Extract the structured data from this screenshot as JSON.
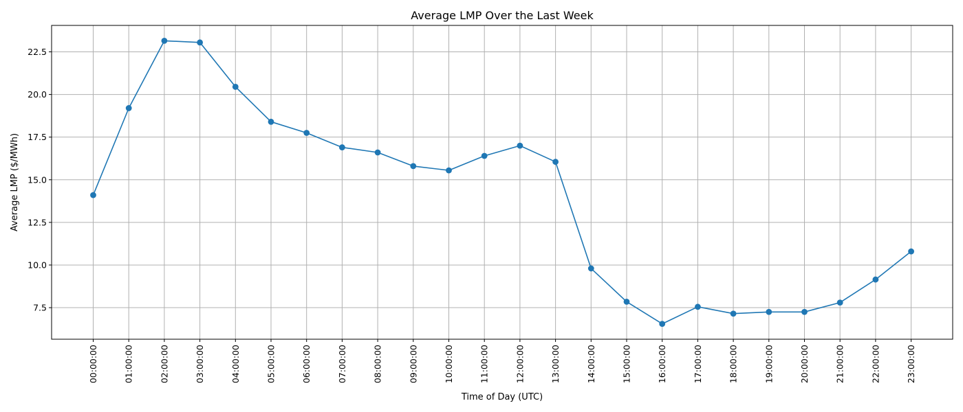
{
  "chart_data": {
    "type": "line",
    "title": "Average LMP Over the Last Week",
    "xlabel": "Time of Day (UTC)",
    "ylabel": "Average LMP ($/MWh)",
    "categories": [
      "00:00:00",
      "01:00:00",
      "02:00:00",
      "03:00:00",
      "04:00:00",
      "05:00:00",
      "06:00:00",
      "07:00:00",
      "08:00:00",
      "09:00:00",
      "10:00:00",
      "11:00:00",
      "12:00:00",
      "13:00:00",
      "14:00:00",
      "15:00:00",
      "16:00:00",
      "17:00:00",
      "18:00:00",
      "19:00:00",
      "20:00:00",
      "21:00:00",
      "22:00:00",
      "23:00:00"
    ],
    "series": [
      {
        "values": [
          14.1,
          19.2,
          23.15,
          23.05,
          20.45,
          18.4,
          17.75,
          16.9,
          16.6,
          15.8,
          15.55,
          16.4,
          17.0,
          16.05,
          9.8,
          7.85,
          6.55,
          7.55,
          7.15,
          7.25,
          7.25,
          7.8,
          9.15,
          10.8
        ],
        "color": "#1f77b4",
        "marker": "circle"
      }
    ],
    "ylim": [
      5.65,
      24.05
    ],
    "yticks": [
      7.5,
      10.0,
      12.5,
      15.0,
      17.5,
      20.0,
      22.5
    ],
    "ytick_labels": [
      "7.5",
      "10.0",
      "12.5",
      "15.0",
      "17.5",
      "20.0",
      "22.5"
    ],
    "grid": true,
    "grid_color": "#b0b0b0",
    "legend": "none"
  }
}
